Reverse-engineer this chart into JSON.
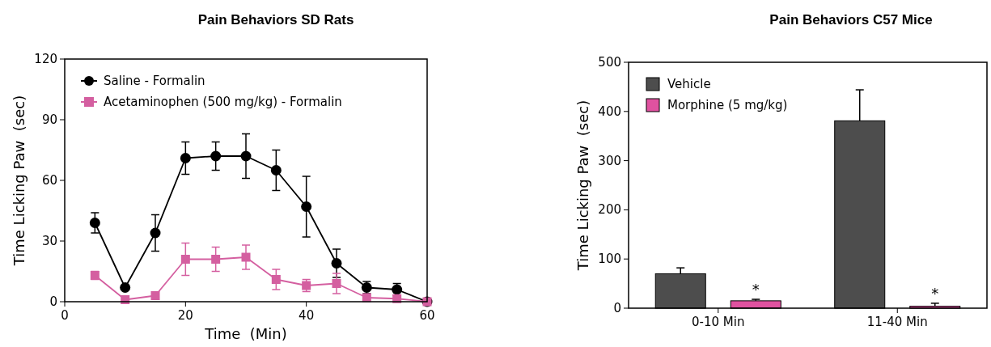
{
  "chart_data": [
    {
      "type": "line",
      "title": "Pain Behaviors SD Rats",
      "xlabel": "Time  (Min)",
      "ylabel": "Time Licking Paw  (sec)",
      "x": [
        5,
        10,
        15,
        20,
        25,
        30,
        35,
        40,
        45,
        50,
        55,
        60
      ],
      "xlim": [
        0,
        60
      ],
      "xticks": [
        0,
        20,
        40,
        60
      ],
      "ylim": [
        0,
        120
      ],
      "yticks": [
        0,
        30,
        60,
        90,
        120
      ],
      "legend": "top left",
      "line_style": "solid",
      "series": [
        {
          "name": "Saline - Formalin",
          "color": "#000000",
          "marker": "circle",
          "values": [
            39,
            7,
            34,
            71,
            72,
            72,
            65,
            47,
            19,
            7,
            6,
            0
          ],
          "errors": [
            5,
            1,
            9,
            8,
            7,
            11,
            10,
            15,
            7,
            3,
            3,
            null
          ]
        },
        {
          "name": "Acetaminophen (500 mg/kg) - Formalin",
          "color": "#d45fa0",
          "marker": "square",
          "values": [
            13,
            1,
            3,
            21,
            21,
            22,
            11,
            8,
            9,
            2,
            1.5,
            0
          ],
          "errors": [
            2,
            null,
            null,
            8,
            6,
            6,
            5,
            3,
            5,
            null,
            null,
            null
          ]
        }
      ]
    },
    {
      "type": "bar",
      "title": "Pain Behaviors C57 Mice",
      "ylabel": "Time Licking Paw  (sec)",
      "categories": [
        "0-10 Min",
        "11-40 Min"
      ],
      "ylim": [
        0,
        500
      ],
      "yticks": [
        0,
        100,
        200,
        300,
        400,
        500
      ],
      "legend": "top left",
      "series": [
        {
          "name": "Vehicle",
          "color": "#4d4d4d",
          "values": [
            70,
            381
          ],
          "errors": [
            [
              70,
              82
            ],
            [
              381,
              444
            ]
          ]
        },
        {
          "name": "Morphine (5 mg/kg)",
          "color": "#e052a0",
          "values": [
            15,
            4
          ],
          "errors": [
            [
              15,
              18
            ],
            [
              4,
              10
            ]
          ]
        }
      ],
      "annotations": [
        "*",
        "*"
      ]
    }
  ]
}
